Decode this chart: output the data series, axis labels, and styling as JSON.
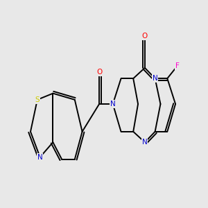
{
  "bg": "#e8e8e8",
  "bond_color": "#000000",
  "lw": 1.4,
  "atom_colors": {
    "N": "#0000cc",
    "O": "#ff0000",
    "S": "#cccc00",
    "F": "#ff00cc",
    "C": "#000000"
  },
  "fs": 7.5,
  "d_off": 0.12
}
